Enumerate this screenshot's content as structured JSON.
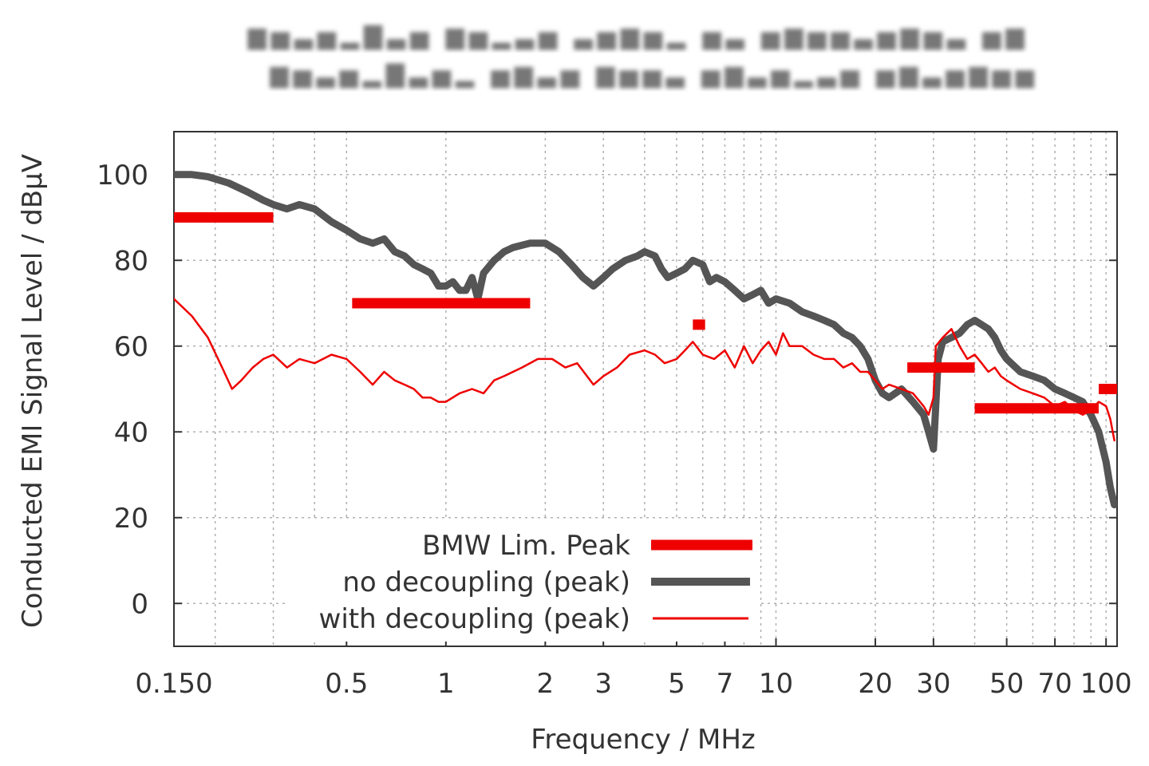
{
  "chart_data": {
    "type": "line",
    "title": "",
    "xlabel": "Frequency / MHz",
    "ylabel": "Conducted EMI Signal Level / dBµV",
    "x_scale": "log",
    "xlim": [
      0.15,
      108
    ],
    "ylim": [
      -10,
      110
    ],
    "grid": true,
    "legend_position": "bottom-center",
    "x_ticks": [
      {
        "value": 0.15,
        "label": "0.150"
      },
      {
        "value": 0.5,
        "label": "0.5"
      },
      {
        "value": 1,
        "label": "1"
      },
      {
        "value": 2,
        "label": "2"
      },
      {
        "value": 3,
        "label": "3"
      },
      {
        "value": 5,
        "label": "5"
      },
      {
        "value": 7,
        "label": "7"
      },
      {
        "value": 10,
        "label": "10"
      },
      {
        "value": 20,
        "label": "20"
      },
      {
        "value": 30,
        "label": "30"
      },
      {
        "value": 50,
        "label": "50"
      },
      {
        "value": 70,
        "label": "70"
      },
      {
        "value": 100,
        "label": "100"
      }
    ],
    "x_minor_gridlines": [
      0.2,
      0.3,
      0.4,
      4,
      6,
      8,
      9,
      40,
      60,
      80,
      90
    ],
    "y_ticks": [
      {
        "value": 100,
        "label": "100"
      },
      {
        "value": 80,
        "label": "80"
      },
      {
        "value": 60,
        "label": "60"
      },
      {
        "value": 40,
        "label": "40"
      },
      {
        "value": 20,
        "label": "20"
      },
      {
        "value": 0,
        "label": "0"
      }
    ],
    "series": [
      {
        "name": "BMW Lim. Peak",
        "color": "#ee0000",
        "style": "limit-segments",
        "segments": [
          {
            "x": [
              0.148,
              0.3
            ],
            "y": 90
          },
          {
            "x": [
              0.52,
              1.8
            ],
            "y": 70
          },
          {
            "x": [
              5.6,
              6.1
            ],
            "y": 65
          },
          {
            "x": [
              25,
              40
            ],
            "y": 55
          },
          {
            "x": [
              40,
              95
            ],
            "y": 45.5
          },
          {
            "x": [
              95,
              108
            ],
            "y": 50
          }
        ]
      },
      {
        "name": "no decoupling (peak)",
        "color": "#555555",
        "style": "thick-line",
        "x": [
          0.15,
          0.17,
          0.19,
          0.22,
          0.25,
          0.28,
          0.3,
          0.33,
          0.36,
          0.4,
          0.45,
          0.5,
          0.55,
          0.6,
          0.65,
          0.7,
          0.75,
          0.8,
          0.85,
          0.9,
          0.95,
          1.0,
          1.05,
          1.1,
          1.15,
          1.2,
          1.25,
          1.3,
          1.4,
          1.5,
          1.6,
          1.8,
          2.0,
          2.2,
          2.4,
          2.6,
          2.8,
          3.0,
          3.2,
          3.5,
          3.8,
          4.0,
          4.3,
          4.5,
          4.7,
          5.0,
          5.3,
          5.6,
          6.0,
          6.3,
          6.6,
          7.0,
          7.5,
          8.0,
          8.5,
          9.0,
          9.5,
          10,
          11,
          12,
          13,
          14,
          15,
          16,
          17,
          18,
          19,
          20,
          21,
          22,
          24,
          26,
          28,
          29,
          30,
          31,
          32,
          34,
          36,
          38,
          40,
          42,
          44,
          46,
          48,
          50,
          55,
          60,
          65,
          70,
          75,
          80,
          85,
          90,
          95,
          100,
          103,
          106
        ],
        "y": [
          100,
          100,
          99.5,
          98,
          96,
          94,
          93,
          92,
          93,
          92,
          89,
          87,
          85,
          84,
          85,
          82,
          81,
          79,
          78,
          77,
          74,
          74,
          75,
          73,
          73,
          76,
          71,
          77,
          80,
          82,
          83,
          84,
          84,
          82,
          79,
          76,
          74,
          76,
          78,
          80,
          81,
          82,
          81,
          78,
          76,
          77,
          78,
          80,
          79,
          75,
          76,
          75,
          73,
          71,
          72,
          73,
          70,
          71,
          70,
          68,
          67,
          66,
          65,
          63,
          62,
          60,
          57,
          52,
          49,
          48,
          50,
          47,
          44,
          40,
          36,
          57,
          61,
          62,
          63,
          65,
          66,
          65,
          64,
          62,
          59,
          57,
          54,
          53,
          52,
          50,
          49,
          48,
          47,
          44,
          40,
          33,
          27,
          23
        ]
      },
      {
        "name": "with decoupling (peak)",
        "color": "#ee0000",
        "style": "thin-line",
        "x": [
          0.15,
          0.17,
          0.19,
          0.21,
          0.225,
          0.24,
          0.26,
          0.28,
          0.3,
          0.33,
          0.36,
          0.4,
          0.45,
          0.5,
          0.55,
          0.6,
          0.65,
          0.7,
          0.75,
          0.8,
          0.85,
          0.9,
          0.95,
          1.0,
          1.1,
          1.2,
          1.3,
          1.4,
          1.5,
          1.7,
          1.9,
          2.1,
          2.3,
          2.5,
          2.8,
          3.0,
          3.3,
          3.6,
          4.0,
          4.3,
          4.6,
          5.0,
          5.3,
          5.6,
          6.0,
          6.5,
          7.0,
          7.5,
          8.0,
          8.5,
          9.0,
          9.5,
          10,
          10.5,
          11,
          12,
          13,
          14,
          15,
          16,
          17,
          18,
          19,
          20,
          21,
          22,
          24,
          26,
          28,
          29,
          30,
          30.5,
          32,
          34,
          36,
          38,
          40,
          42,
          44,
          46,
          48,
          50,
          55,
          60,
          65,
          70,
          75,
          80,
          85,
          90,
          95,
          100,
          103,
          106
        ],
        "y": [
          71,
          67,
          62,
          55,
          50,
          52,
          55,
          57,
          58,
          55,
          57,
          56,
          58,
          57,
          54,
          51,
          54,
          52,
          51,
          50,
          48,
          48,
          47,
          47,
          49,
          50,
          49,
          52,
          53,
          55,
          57,
          57,
          55,
          56,
          51,
          53,
          55,
          58,
          59,
          58,
          56,
          57,
          59,
          61,
          58,
          57,
          59,
          55,
          60,
          56,
          59,
          61,
          58,
          63,
          60,
          60,
          58,
          57,
          57,
          55,
          56,
          54,
          54,
          52,
          50,
          51,
          50,
          49,
          46,
          44,
          48,
          60,
          62,
          64,
          60,
          57,
          58,
          56,
          54,
          55,
          53,
          52,
          50,
          49,
          48,
          46,
          47,
          45,
          44,
          45,
          47,
          46,
          43,
          38
        ]
      }
    ]
  }
}
